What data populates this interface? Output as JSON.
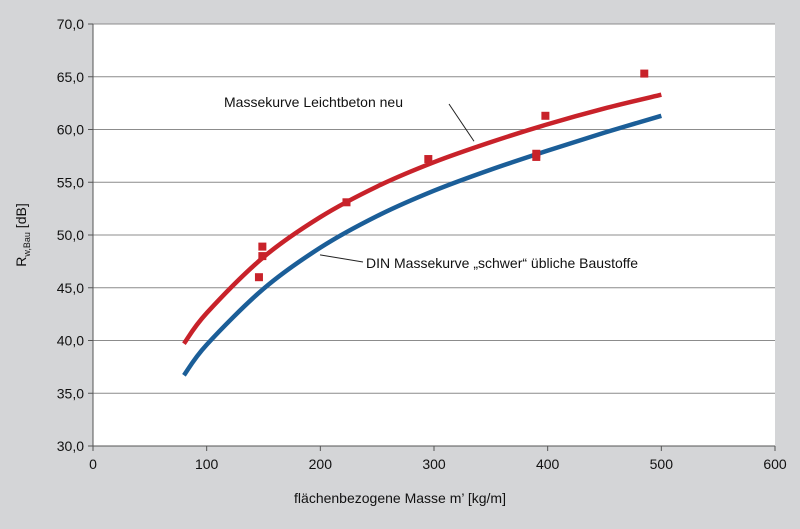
{
  "chart_data": {
    "type": "scatter",
    "xlabel": "flächenbezogene Masse m’ [kg/m]",
    "ylabel": {
      "main": "R",
      "sub": "w,Bau",
      "unit": " [dB]"
    },
    "xlim": [
      0,
      600
    ],
    "ylim": [
      30,
      70
    ],
    "x_ticks": [
      0,
      100,
      200,
      300,
      400,
      500,
      600
    ],
    "y_ticks": [
      30,
      35,
      40,
      45,
      50,
      55,
      60,
      65,
      70
    ],
    "x_tick_labels": [
      "0",
      "100",
      "200",
      "300",
      "400",
      "500",
      "600"
    ],
    "y_tick_labels": [
      "30,0",
      "35,0",
      "40,0",
      "45,0",
      "50,0",
      "55,0",
      "60,0",
      "65,0",
      "70,0"
    ],
    "grid": "horizontal",
    "colors": {
      "background": "#d4d5d7",
      "plot_area": "#ffffff",
      "leichtbeton": "#c8222a",
      "din": "#1b5e98",
      "points": "#c8222a"
    },
    "series": [
      {
        "name": "Massekurve Leichtbeton neu",
        "kind": "curve",
        "x": [
          80,
          100,
          150,
          200,
          250,
          300,
          350,
          400,
          450,
          500
        ],
        "y": [
          39.7,
          42.6,
          47.9,
          51.7,
          54.6,
          56.9,
          58.8,
          60.5,
          62.0,
          63.3
        ]
      },
      {
        "name": "DIN Massekurve „schwer“ übliche Baustoffe",
        "kind": "curve",
        "x": [
          80,
          100,
          150,
          200,
          250,
          300,
          350,
          400,
          450,
          500
        ],
        "y": [
          36.7,
          39.6,
          44.9,
          48.8,
          51.8,
          54.2,
          56.2,
          58.0,
          59.7,
          61.3
        ]
      },
      {
        "kind": "points",
        "x": [
          146,
          149,
          149,
          223,
          295,
          390,
          390,
          398,
          485
        ],
        "y": [
          46.0,
          48.0,
          48.9,
          53.1,
          57.2,
          57.4,
          57.7,
          61.3,
          65.3
        ]
      }
    ],
    "annotations": [
      {
        "text": "Massekurve Leichtbeton neu",
        "target_series": 0
      },
      {
        "text": "DIN Massekurve „schwer“ übliche Baustoffe",
        "target_series": 1
      }
    ]
  }
}
